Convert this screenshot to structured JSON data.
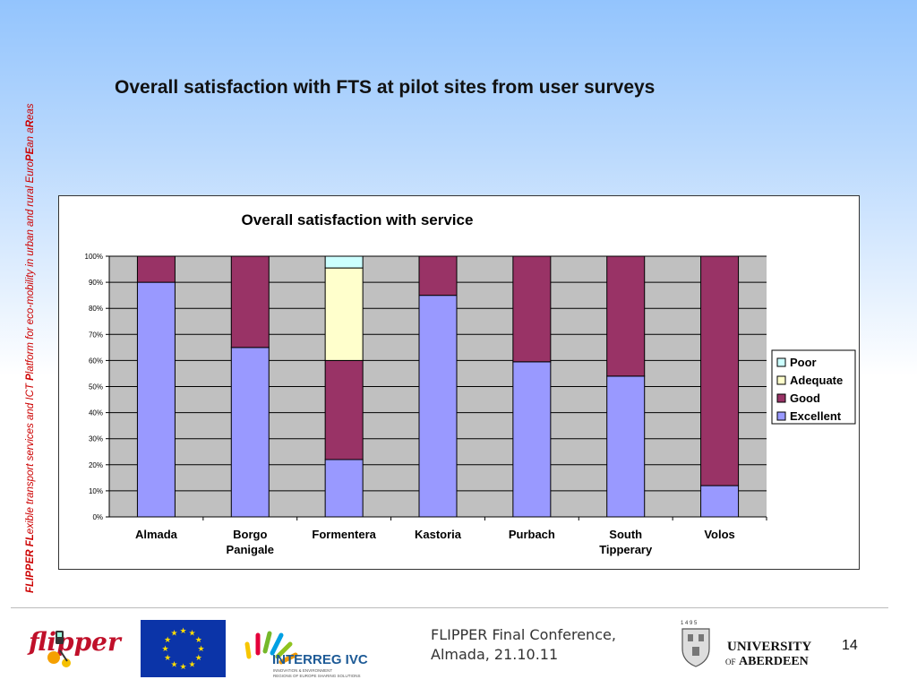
{
  "side_text": {
    "parts": [
      {
        "text": "FLIPPER FL",
        "bold": true
      },
      {
        "text": "exible transport services and ICT ",
        "bold": false
      },
      {
        "text": "P",
        "bold": true
      },
      {
        "text": "latform for eco-mobility in urban and rural Euro",
        "bold": false
      },
      {
        "text": "PE",
        "bold": true
      },
      {
        "text": "an a",
        "bold": false
      },
      {
        "text": "R",
        "bold": true
      },
      {
        "text": "eas",
        "bold": false
      }
    ]
  },
  "slide_title": "Overall satisfaction with FTS at pilot sites from user surveys",
  "colors": {
    "excellent": "#9999ff",
    "good": "#993366",
    "adequate": "#ffffcc",
    "poor": "#ccffff",
    "plot_bg": "#c0c0c0"
  },
  "chart_data": {
    "type": "bar",
    "stacked": true,
    "percent": true,
    "title": "Overall satisfaction with service",
    "categories": [
      [
        "Almada"
      ],
      [
        "Borgo",
        "Panigale"
      ],
      [
        "Formentera"
      ],
      [
        "Kastoria"
      ],
      [
        "Purbach"
      ],
      [
        "South",
        "Tipperary"
      ],
      [
        "Volos"
      ]
    ],
    "ylim": [
      0,
      100
    ],
    "yticks": [
      "0%",
      "10%",
      "20%",
      "30%",
      "40%",
      "50%",
      "60%",
      "70%",
      "80%",
      "90%",
      "100%"
    ],
    "series": [
      {
        "name": "Excellent",
        "key": "excellent",
        "values": [
          90,
          65,
          22,
          85,
          59.5,
          54,
          12
        ]
      },
      {
        "name": "Good",
        "key": "good",
        "values": [
          10,
          35,
          38,
          15,
          40.5,
          46,
          88
        ]
      },
      {
        "name": "Adequate",
        "key": "adequate",
        "values": [
          0,
          0,
          35.5,
          0,
          0,
          0,
          0
        ]
      },
      {
        "name": "Poor",
        "key": "poor",
        "values": [
          0,
          0,
          4.5,
          0,
          0,
          0,
          0
        ]
      }
    ],
    "legend_order": [
      "Poor",
      "Adequate",
      "Good",
      "Excellent"
    ],
    "legend_position": "right",
    "grid": true
  },
  "footer": {
    "conference_line1": "FLIPPER Final Conference,",
    "conference_line2": "Almada, 21.10.11",
    "page_number": "14",
    "flipper_logo_text": "flipper",
    "interreg_text": "INTERREG IVC",
    "interreg_sub1": "INNOVATION & ENVIRONMENT",
    "interreg_sub2": "REGIONS OF EUROPE SHARING SOLUTIONS",
    "aberdeen_year": "1 4 9 5",
    "aberdeen_line1": "UNIVERSITY",
    "aberdeen_of": "OF",
    "aberdeen_line2": "ABERDEEN"
  }
}
